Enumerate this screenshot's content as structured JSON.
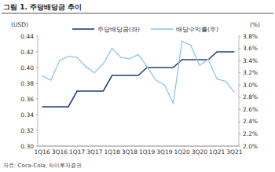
{
  "chart_data": {
    "type": "line",
    "title": "그림 1. 주당배당금 추이",
    "y_label": "(USD)",
    "y2_label": "(%)",
    "source": "자료: Coca-Cola, 하이투자증권",
    "categories": [
      "1Q16",
      null,
      "3Q16",
      null,
      "1Q17",
      null,
      "3Q17",
      null,
      "1Q18",
      null,
      "3Q18",
      null,
      "1Q19",
      null,
      "3Q19",
      null,
      "1Q20",
      null,
      "3Q20",
      null,
      "1Q21",
      null,
      "3Q21"
    ],
    "series": [
      {
        "name": "주당배당금(좌)",
        "color": "#1f3f7f",
        "line_style": "solid",
        "values": [
          0.35,
          0.35,
          0.35,
          0.35,
          0.37,
          0.37,
          0.37,
          0.37,
          0.39,
          0.39,
          0.39,
          0.39,
          0.4,
          0.4,
          0.4,
          0.4,
          0.41,
          0.41,
          0.41,
          0.41,
          0.42,
          0.42,
          0.42
        ]
      },
      {
        "name": "배당수익률(우)",
        "color": "#8ec4ea",
        "line_style": "solid",
        "axis": "y2",
        "values": [
          3.15,
          3.08,
          3.4,
          3.47,
          3.45,
          3.3,
          3.2,
          3.35,
          3.6,
          3.45,
          3.43,
          3.5,
          3.3,
          3.08,
          3.0,
          2.7,
          3.72,
          3.65,
          3.32,
          3.42,
          3.1,
          3.06,
          2.88
        ]
      }
    ],
    "ylim": [
      0.3,
      0.44
    ],
    "yticks": [
      {
        "value": 0.3,
        "label": "0.30"
      },
      0.32,
      0.34,
      0.36,
      0.38,
      {
        "value": 0.4,
        "label": "0.40"
      },
      0.42,
      0.44
    ],
    "y2lim": [
      2.0,
      3.8
    ],
    "y2ticks": [
      {
        "value": 2.0,
        "label": "2.0%"
      },
      {
        "value": 2.2,
        "label": "2.2%"
      },
      {
        "value": 2.4,
        "label": "2.4%"
      },
      {
        "value": 2.6,
        "label": "2.6%"
      },
      {
        "value": 2.8,
        "label": "2.8%"
      },
      {
        "value": 3.0,
        "label": "3.0%"
      },
      {
        "value": 3.2,
        "label": "3.2%"
      },
      {
        "value": 3.4,
        "label": "3.4%"
      },
      {
        "value": 3.6,
        "label": "3.6%"
      },
      {
        "value": 3.8,
        "label": "3.8%"
      }
    ],
    "grid": false,
    "legend": "top"
  }
}
